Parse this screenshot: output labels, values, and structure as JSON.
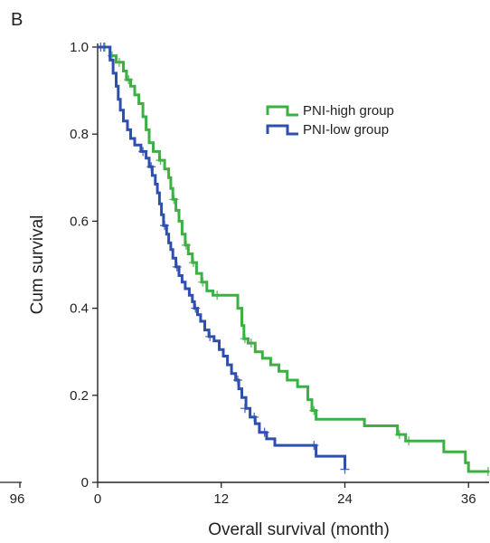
{
  "panel_label": "B",
  "neighbor_panel": {
    "tick_label": "96"
  },
  "chart_data": {
    "type": "line",
    "subtype": "kaplan-meier",
    "title": "",
    "xlabel": "Overall survival (month)",
    "ylabel": "Cum survival",
    "xlim": [
      0,
      38
    ],
    "ylim": [
      0,
      1.0
    ],
    "x_ticks": [
      0,
      12,
      24,
      36
    ],
    "y_ticks": [
      0,
      0.2,
      0.4,
      0.6,
      0.8,
      1.0
    ],
    "x_tick_labels": [
      "0",
      "12",
      "24",
      "36"
    ],
    "y_tick_labels": [
      "0",
      "0.2",
      "0.4",
      "0.6",
      "0.8",
      "1.0"
    ],
    "grid": false,
    "legend_position": "top-right",
    "series": [
      {
        "name": "PNI-high group",
        "color": "#3cb043",
        "steps": [
          [
            0,
            1.0
          ],
          [
            0.8,
            1.0
          ],
          [
            1.2,
            0.98
          ],
          [
            1.8,
            0.965
          ],
          [
            2.5,
            0.945
          ],
          [
            2.8,
            0.925
          ],
          [
            3.2,
            0.91
          ],
          [
            3.6,
            0.89
          ],
          [
            4.0,
            0.87
          ],
          [
            4.4,
            0.84
          ],
          [
            4.7,
            0.81
          ],
          [
            5.0,
            0.78
          ],
          [
            5.4,
            0.76
          ],
          [
            6.0,
            0.74
          ],
          [
            6.5,
            0.72
          ],
          [
            6.9,
            0.7
          ],
          [
            7.1,
            0.675
          ],
          [
            7.3,
            0.65
          ],
          [
            7.6,
            0.625
          ],
          [
            7.9,
            0.6
          ],
          [
            8.2,
            0.57
          ],
          [
            8.5,
            0.545
          ],
          [
            8.8,
            0.525
          ],
          [
            9.2,
            0.505
          ],
          [
            9.6,
            0.48
          ],
          [
            10.1,
            0.46
          ],
          [
            10.6,
            0.44
          ],
          [
            11.2,
            0.43
          ],
          [
            12.5,
            0.43
          ],
          [
            13.3,
            0.43
          ],
          [
            13.6,
            0.4
          ],
          [
            14.0,
            0.36
          ],
          [
            14.2,
            0.33
          ],
          [
            14.6,
            0.32
          ],
          [
            15.3,
            0.3
          ],
          [
            16.0,
            0.285
          ],
          [
            16.8,
            0.27
          ],
          [
            17.6,
            0.255
          ],
          [
            18.4,
            0.235
          ],
          [
            19.4,
            0.22
          ],
          [
            20.4,
            0.19
          ],
          [
            20.8,
            0.165
          ],
          [
            21.2,
            0.145
          ],
          [
            22.6,
            0.145
          ],
          [
            24.6,
            0.145
          ],
          [
            25.9,
            0.13
          ],
          [
            27.4,
            0.13
          ],
          [
            29.1,
            0.11
          ],
          [
            29.9,
            0.095
          ],
          [
            31.6,
            0.095
          ],
          [
            33.6,
            0.07
          ],
          [
            35.7,
            0.045
          ],
          [
            36.0,
            0.025
          ],
          [
            38.0,
            0.025
          ]
        ],
        "censored": [
          [
            0.7,
            1.0
          ],
          [
            1.4,
            0.98
          ],
          [
            2.1,
            0.965
          ],
          [
            3.0,
            0.925
          ],
          [
            6.1,
            0.74
          ],
          [
            7.4,
            0.65
          ],
          [
            8.6,
            0.545
          ],
          [
            9.3,
            0.505
          ],
          [
            10.2,
            0.46
          ],
          [
            11.6,
            0.43
          ],
          [
            14.3,
            0.33
          ],
          [
            14.9,
            0.32
          ],
          [
            21.0,
            0.165
          ],
          [
            29.3,
            0.11
          ],
          [
            30.2,
            0.095
          ],
          [
            37.9,
            0.025
          ]
        ]
      },
      {
        "name": "PNI-low group",
        "color": "#2e4fb0",
        "steps": [
          [
            0,
            1.0
          ],
          [
            0.8,
            1.0
          ],
          [
            1.2,
            0.97
          ],
          [
            1.5,
            0.94
          ],
          [
            1.8,
            0.91
          ],
          [
            2.0,
            0.88
          ],
          [
            2.2,
            0.855
          ],
          [
            2.5,
            0.83
          ],
          [
            2.9,
            0.81
          ],
          [
            3.2,
            0.79
          ],
          [
            3.6,
            0.775
          ],
          [
            4.2,
            0.76
          ],
          [
            4.7,
            0.745
          ],
          [
            5.0,
            0.725
          ],
          [
            5.3,
            0.705
          ],
          [
            5.6,
            0.685
          ],
          [
            5.8,
            0.665
          ],
          [
            6.0,
            0.64
          ],
          [
            6.2,
            0.615
          ],
          [
            6.4,
            0.59
          ],
          [
            6.7,
            0.57
          ],
          [
            6.9,
            0.55
          ],
          [
            7.1,
            0.535
          ],
          [
            7.3,
            0.515
          ],
          [
            7.6,
            0.495
          ],
          [
            7.9,
            0.475
          ],
          [
            8.2,
            0.46
          ],
          [
            8.5,
            0.445
          ],
          [
            8.9,
            0.43
          ],
          [
            9.2,
            0.415
          ],
          [
            9.4,
            0.4
          ],
          [
            9.7,
            0.385
          ],
          [
            10.0,
            0.37
          ],
          [
            10.4,
            0.35
          ],
          [
            10.8,
            0.335
          ],
          [
            11.3,
            0.325
          ],
          [
            11.8,
            0.305
          ],
          [
            12.2,
            0.29
          ],
          [
            12.6,
            0.27
          ],
          [
            13.0,
            0.25
          ],
          [
            13.4,
            0.235
          ],
          [
            13.7,
            0.215
          ],
          [
            14.0,
            0.195
          ],
          [
            14.4,
            0.17
          ],
          [
            14.8,
            0.15
          ],
          [
            15.3,
            0.135
          ],
          [
            15.7,
            0.115
          ],
          [
            16.4,
            0.1
          ],
          [
            17.2,
            0.085
          ],
          [
            21.2,
            0.06
          ],
          [
            22.0,
            0.06
          ],
          [
            24.0,
            0.03
          ]
        ],
        "censored": [
          [
            0.3,
            1.0
          ],
          [
            0.6,
            1.0
          ],
          [
            4.4,
            0.76
          ],
          [
            5.2,
            0.725
          ],
          [
            6.5,
            0.59
          ],
          [
            7.7,
            0.495
          ],
          [
            9.5,
            0.4
          ],
          [
            10.9,
            0.335
          ],
          [
            13.6,
            0.235
          ],
          [
            14.3,
            0.17
          ],
          [
            15.2,
            0.15
          ],
          [
            16.2,
            0.115
          ],
          [
            21.0,
            0.085
          ],
          [
            24.0,
            0.03
          ]
        ]
      }
    ]
  }
}
